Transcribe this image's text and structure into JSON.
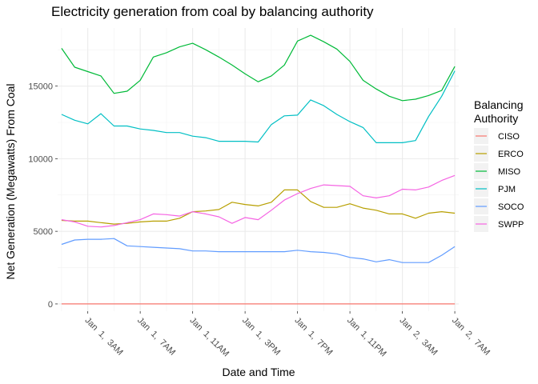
{
  "chart_data": {
    "type": "line",
    "title": "Electricity generation from coal by balancing authority",
    "xlabel": "Date and Time",
    "ylabel": "Net Generation (Megawatts) From Coal",
    "legend_title": "Balancing Authority",
    "legend_placement": "right",
    "grid": true,
    "x_unit": "hour",
    "x": [
      1,
      2,
      3,
      4,
      5,
      6,
      7,
      8,
      9,
      10,
      11,
      12,
      13,
      14,
      15,
      16,
      17,
      18,
      19,
      20,
      21,
      22,
      23,
      24,
      25,
      26,
      27,
      28,
      29,
      30,
      31
    ],
    "xlim": [
      0.7,
      31.3
    ],
    "x_ticks": [
      3,
      7,
      11,
      15,
      19,
      23,
      27,
      31
    ],
    "x_tick_labels": [
      "Jan  1,  3AM",
      "Jan  1,  7AM",
      "Jan  1, 11AM",
      "Jan  1,  3PM",
      "Jan  1,  7PM",
      "Jan  1, 11PM",
      "Jan  2,  3AM",
      "Jan  2,  7AM"
    ],
    "ylim": [
      -500,
      19000
    ],
    "y_ticks": [
      0,
      5000,
      10000,
      15000
    ],
    "y_tick_labels": [
      "0",
      "5000",
      "10000",
      "15000"
    ],
    "series": [
      {
        "name": "CISO",
        "color": "#F8766D",
        "values": [
          0,
          0,
          0,
          0,
          0,
          0,
          0,
          0,
          0,
          0,
          0,
          0,
          0,
          0,
          0,
          0,
          0,
          0,
          0,
          0,
          0,
          0,
          0,
          0,
          0,
          0,
          0,
          0,
          0,
          0,
          0
        ]
      },
      {
        "name": "ERCO",
        "color": "#B79F00",
        "values": [
          5750,
          5700,
          5700,
          5600,
          5500,
          5550,
          5650,
          5700,
          5700,
          5900,
          6350,
          6400,
          6500,
          7000,
          6850,
          6750,
          7000,
          7850,
          7850,
          7050,
          6650,
          6650,
          6900,
          6600,
          6450,
          6200,
          6200,
          5900,
          6250,
          6350,
          6250
        ]
      },
      {
        "name": "MISO",
        "color": "#00BA38",
        "values": [
          17600,
          16300,
          16000,
          15700,
          14500,
          14650,
          15400,
          17000,
          17300,
          17700,
          17950,
          17500,
          17000,
          16450,
          15850,
          15300,
          15700,
          16450,
          18100,
          18500,
          18050,
          17550,
          16700,
          15400,
          14800,
          14300,
          14000,
          14100,
          14350,
          14700,
          16350
        ]
      },
      {
        "name": "PJM",
        "color": "#00BFC4",
        "values": [
          13050,
          12650,
          12400,
          13100,
          12250,
          12250,
          12050,
          11950,
          11800,
          11800,
          11550,
          11450,
          11200,
          11200,
          11200,
          11150,
          12350,
          12950,
          13000,
          14050,
          13650,
          13050,
          12550,
          12150,
          11100,
          11100,
          11100,
          11250,
          12900,
          14300,
          16050
        ]
      },
      {
        "name": "SOCO",
        "color": "#619CFF",
        "values": [
          4100,
          4400,
          4450,
          4450,
          4500,
          4000,
          3950,
          3900,
          3850,
          3800,
          3650,
          3650,
          3600,
          3600,
          3600,
          3600,
          3600,
          3600,
          3700,
          3600,
          3550,
          3450,
          3200,
          3100,
          2900,
          3050,
          2850,
          2850,
          2850,
          3350,
          3950
        ]
      },
      {
        "name": "SWPP",
        "color": "#F564E3",
        "values": [
          5800,
          5650,
          5350,
          5300,
          5400,
          5600,
          5800,
          6200,
          6150,
          6050,
          6350,
          6200,
          6000,
          5550,
          5950,
          5800,
          6450,
          7150,
          7600,
          7950,
          8200,
          8150,
          8100,
          7450,
          7300,
          7450,
          7900,
          7850,
          8050,
          8500,
          8850
        ]
      }
    ]
  }
}
